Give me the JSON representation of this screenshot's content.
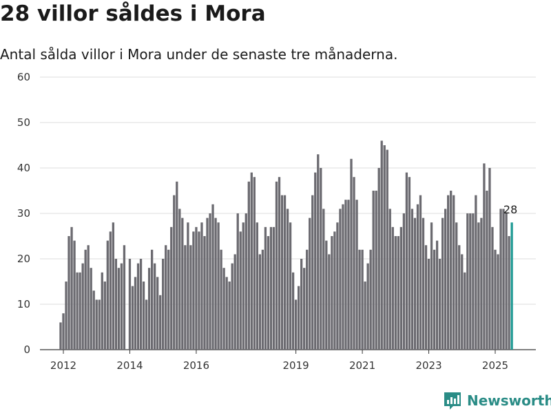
{
  "title": "28 villor såldes i Mora",
  "subtitle": "Antal sålda villor i Mora under de senaste tre månaderna.",
  "brand": {
    "name": "Newsworthy",
    "icon": "newsworthy-logo-icon",
    "color": "#2a8c86"
  },
  "chart_data": {
    "type": "bar",
    "title": "28 villor såldes i Mora",
    "subtitle": "Antal sålda villor i Mora under de senaste tre månaderna.",
    "xlabel": "",
    "ylabel": "",
    "ylim": [
      0,
      60
    ],
    "yticks": [
      "0",
      "10",
      "20",
      "30",
      "40",
      "50",
      "60"
    ],
    "xticks": [
      "2012",
      "2014",
      "2016",
      "2019",
      "2021",
      "2023",
      "2025"
    ],
    "xtick_positions": [
      2012.0,
      2014.0,
      2016.0,
      2019.0,
      2021.0,
      2023.0,
      2025.0
    ],
    "grid": true,
    "bar_color": "#6b6a70",
    "highlight_color": "#1f9a94",
    "highlight_label": "28",
    "series": [
      {
        "start": "2011-12",
        "values": [
          6,
          8,
          15,
          25,
          27,
          24,
          17,
          17,
          19,
          22,
          23,
          18,
          13,
          11,
          11,
          17,
          15,
          24,
          26,
          28,
          20,
          18,
          19,
          23,
          0,
          20,
          14,
          16,
          19,
          20,
          15,
          11,
          18,
          22,
          19,
          16,
          12,
          20,
          23,
          22,
          27,
          34,
          37,
          31,
          29,
          23,
          28,
          23,
          26,
          27,
          26,
          28,
          25,
          29,
          30,
          32,
          29,
          28,
          22,
          18,
          16,
          15,
          19,
          21,
          30,
          26,
          28,
          30,
          37,
          39,
          38,
          28,
          21,
          22,
          27,
          25,
          27,
          27,
          37,
          38,
          34,
          34,
          31,
          28,
          17,
          11,
          14,
          20,
          18,
          22,
          29,
          34,
          39,
          43,
          40,
          31,
          24,
          21,
          25,
          26,
          28,
          31,
          32,
          33,
          33,
          42,
          38,
          33,
          22,
          22,
          15,
          19,
          22,
          35,
          35,
          40,
          46,
          45,
          44,
          31,
          27,
          25,
          25,
          27,
          30,
          39,
          38,
          31,
          29,
          32,
          34,
          29,
          23,
          20,
          28,
          22,
          24,
          20,
          29,
          31,
          34,
          35,
          34,
          28,
          23,
          21,
          17,
          30,
          30,
          30,
          34,
          28,
          29,
          41,
          35,
          40,
          27,
          22,
          21,
          31,
          31,
          30,
          25,
          28
        ]
      }
    ]
  }
}
